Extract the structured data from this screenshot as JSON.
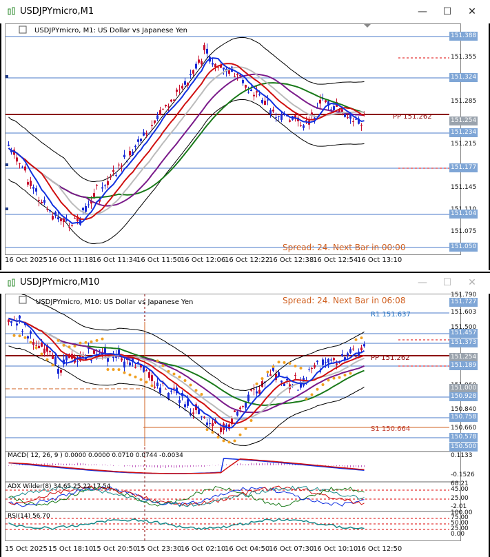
{
  "window1": {
    "title": "USDJPYmicro,M1",
    "chart_label": "USDJPYmicro, M1:  US Dollar vs Japanese Yen",
    "spread_text": "Spread: 24. Next Bar in 00:00",
    "pp_label": "PP 151.262",
    "price_labels": [
      "151.388",
      "151.355",
      "151.324",
      "151.285",
      "151.254",
      "151.234",
      "151.215",
      "151.177",
      "151.145",
      "151.110",
      "151.104",
      "151.075",
      "151.050"
    ],
    "time_labels": [
      "16 Oct 2025",
      "16 Oct 11:18",
      "16 Oct 11:34",
      "16 Oct 11:50",
      "16 Oct 12:06",
      "16 Oct 12:22",
      "16 Oct 12:38",
      "16 Oct 12:54",
      "16 Oct 13:10"
    ]
  },
  "window2": {
    "title": "USDJPYmicro,M10",
    "chart_label": "USDJPYmicro, M10:  US Dollar vs Japanese Yen",
    "spread_text": "Spread: 24. Next Bar in 06:08",
    "r1_label": "R1 151.637",
    "pp_label": "PP 151.262",
    "s1_label": "S1 150.664",
    "price_labels": [
      "151.790",
      "151.727",
      "151.603",
      "151.500",
      "151.457",
      "151.373",
      "151.254",
      "151.189",
      "151.060",
      "151.000",
      "150.928",
      "150.840",
      "150.758",
      "150.660",
      "150.578",
      "150.500"
    ],
    "macd_label": "MACD( 12, 26, 9 ) 0.0000 0.0000 0.0710 0.0744 -0.0034",
    "macd_scale": [
      "0.1133",
      "-0.1526"
    ],
    "adx_label": "ADX Wilder(8) 34.65 25.22 17.54",
    "adx_scale": [
      "68.21",
      "45.00",
      "25.00",
      "-2.01"
    ],
    "rsi_label": "RSI(14) 56.70",
    "rsi_scale": [
      "100.00",
      "75.00",
      "50.00",
      "25.00",
      "0.00"
    ],
    "time_labels": [
      "15 Oct 2025",
      "15 Oct 18:10",
      "15 Oct 20:50",
      "15 Oct 23:30",
      "16 Oct 02:10",
      "16 Oct 04:50",
      "16 Oct 07:30",
      "16 Oct 10:10",
      "16 Oct 12:50"
    ]
  },
  "controls": {
    "minimize": "—",
    "maximize": "☐",
    "close": "✕"
  }
}
